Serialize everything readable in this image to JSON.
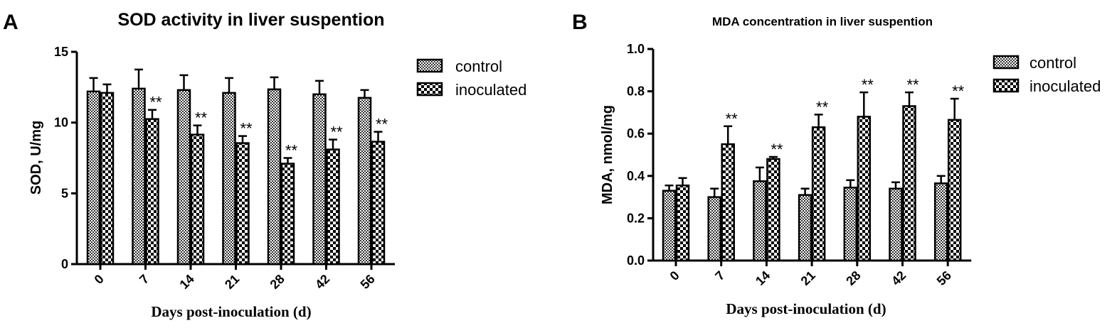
{
  "chart_data": [
    {
      "panel": "A",
      "type": "bar",
      "title": "SOD activity in liver suspention",
      "xlabel": "Days post-inoculation (d)",
      "ylabel": "SOD, U/mg",
      "categories": [
        "0",
        "7",
        "14",
        "21",
        "28",
        "42",
        "56"
      ],
      "ylim": [
        0,
        15
      ],
      "yticks": [
        "0",
        "5",
        "10",
        "15"
      ],
      "legend_position": "top-right",
      "series": [
        {
          "name": "control",
          "pattern": "fine-check",
          "values": [
            12.2,
            12.4,
            12.3,
            12.1,
            12.35,
            12.0,
            11.75
          ],
          "errors": [
            0.95,
            1.35,
            1.05,
            1.05,
            0.85,
            0.95,
            0.55
          ]
        },
        {
          "name": "inoculated",
          "pattern": "coarse-check",
          "values": [
            12.1,
            10.25,
            9.15,
            8.55,
            7.1,
            8.1,
            8.65
          ],
          "errors": [
            0.6,
            0.65,
            0.65,
            0.5,
            0.4,
            0.7,
            0.7
          ]
        }
      ],
      "annotations": [
        "",
        "**",
        "**",
        "**",
        "**",
        "**",
        "**"
      ]
    },
    {
      "panel": "B",
      "type": "bar",
      "title": "MDA concentration in liver suspention",
      "xlabel": "Days post-inoculation (d)",
      "ylabel": "MDA, nmol/mg",
      "categories": [
        "0",
        "7",
        "14",
        "21",
        "28",
        "42",
        "56"
      ],
      "ylim": [
        0,
        1.0
      ],
      "yticks": [
        "0.0",
        "0.2",
        "0.4",
        "0.6",
        "0.8",
        "1.0"
      ],
      "legend_position": "top-right",
      "series": [
        {
          "name": "control",
          "pattern": "fine-check",
          "values": [
            0.33,
            0.3,
            0.375,
            0.31,
            0.345,
            0.34,
            0.365
          ],
          "errors": [
            0.025,
            0.04,
            0.065,
            0.03,
            0.035,
            0.03,
            0.035
          ]
        },
        {
          "name": "inoculated",
          "pattern": "coarse-check",
          "values": [
            0.355,
            0.55,
            0.48,
            0.63,
            0.68,
            0.73,
            0.665
          ],
          "errors": [
            0.035,
            0.085,
            0.01,
            0.06,
            0.115,
            0.065,
            0.1
          ]
        }
      ],
      "annotations": [
        "",
        "**",
        "**",
        "**",
        "**",
        "**",
        "**"
      ]
    }
  ]
}
